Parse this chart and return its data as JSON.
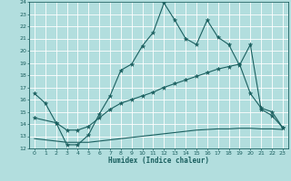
{
  "xlabel": "Humidex (Indice chaleur)",
  "xlim": [
    -0.5,
    23.5
  ],
  "ylim": [
    12,
    24
  ],
  "yticks": [
    12,
    13,
    14,
    15,
    16,
    17,
    18,
    19,
    20,
    21,
    22,
    23,
    24
  ],
  "xticks": [
    0,
    1,
    2,
    3,
    4,
    5,
    6,
    7,
    8,
    9,
    10,
    11,
    12,
    13,
    14,
    15,
    16,
    17,
    18,
    19,
    20,
    21,
    22,
    23
  ],
  "bg_color": "#b2dede",
  "grid_color": "#ffffff",
  "line_color": "#1a5f5f",
  "line1_x": [
    0,
    1,
    2,
    3,
    4,
    5,
    6,
    7,
    8,
    9,
    10,
    11,
    12,
    13,
    14,
    15,
    16,
    17,
    18,
    19,
    20,
    21,
    22,
    23
  ],
  "line1_y": [
    16.5,
    15.7,
    14.1,
    12.3,
    12.3,
    13.1,
    14.8,
    16.3,
    18.4,
    18.9,
    20.4,
    21.5,
    23.9,
    22.5,
    21.0,
    20.5,
    22.5,
    21.1,
    20.5,
    18.8,
    20.5,
    15.2,
    14.7,
    13.7
  ],
  "line2_x": [
    0,
    2,
    3,
    4,
    5,
    6,
    7,
    8,
    9,
    10,
    11,
    12,
    13,
    14,
    15,
    16,
    17,
    18,
    19,
    20,
    21,
    22,
    23
  ],
  "line2_y": [
    14.5,
    14.1,
    13.5,
    13.5,
    13.8,
    14.5,
    15.2,
    15.7,
    16.0,
    16.3,
    16.6,
    17.0,
    17.3,
    17.6,
    17.9,
    18.2,
    18.5,
    18.7,
    18.9,
    16.5,
    15.3,
    15.0,
    13.7
  ],
  "line3_x": [
    0,
    1,
    2,
    3,
    4,
    5,
    6,
    7,
    8,
    9,
    10,
    11,
    12,
    13,
    14,
    15,
    16,
    17,
    18,
    19,
    20,
    21,
    22,
    23
  ],
  "line3_y": [
    12.8,
    12.7,
    12.6,
    12.5,
    12.5,
    12.5,
    12.6,
    12.7,
    12.8,
    12.9,
    13.0,
    13.1,
    13.2,
    13.3,
    13.4,
    13.5,
    13.55,
    13.6,
    13.6,
    13.65,
    13.65,
    13.6,
    13.6,
    13.55
  ]
}
